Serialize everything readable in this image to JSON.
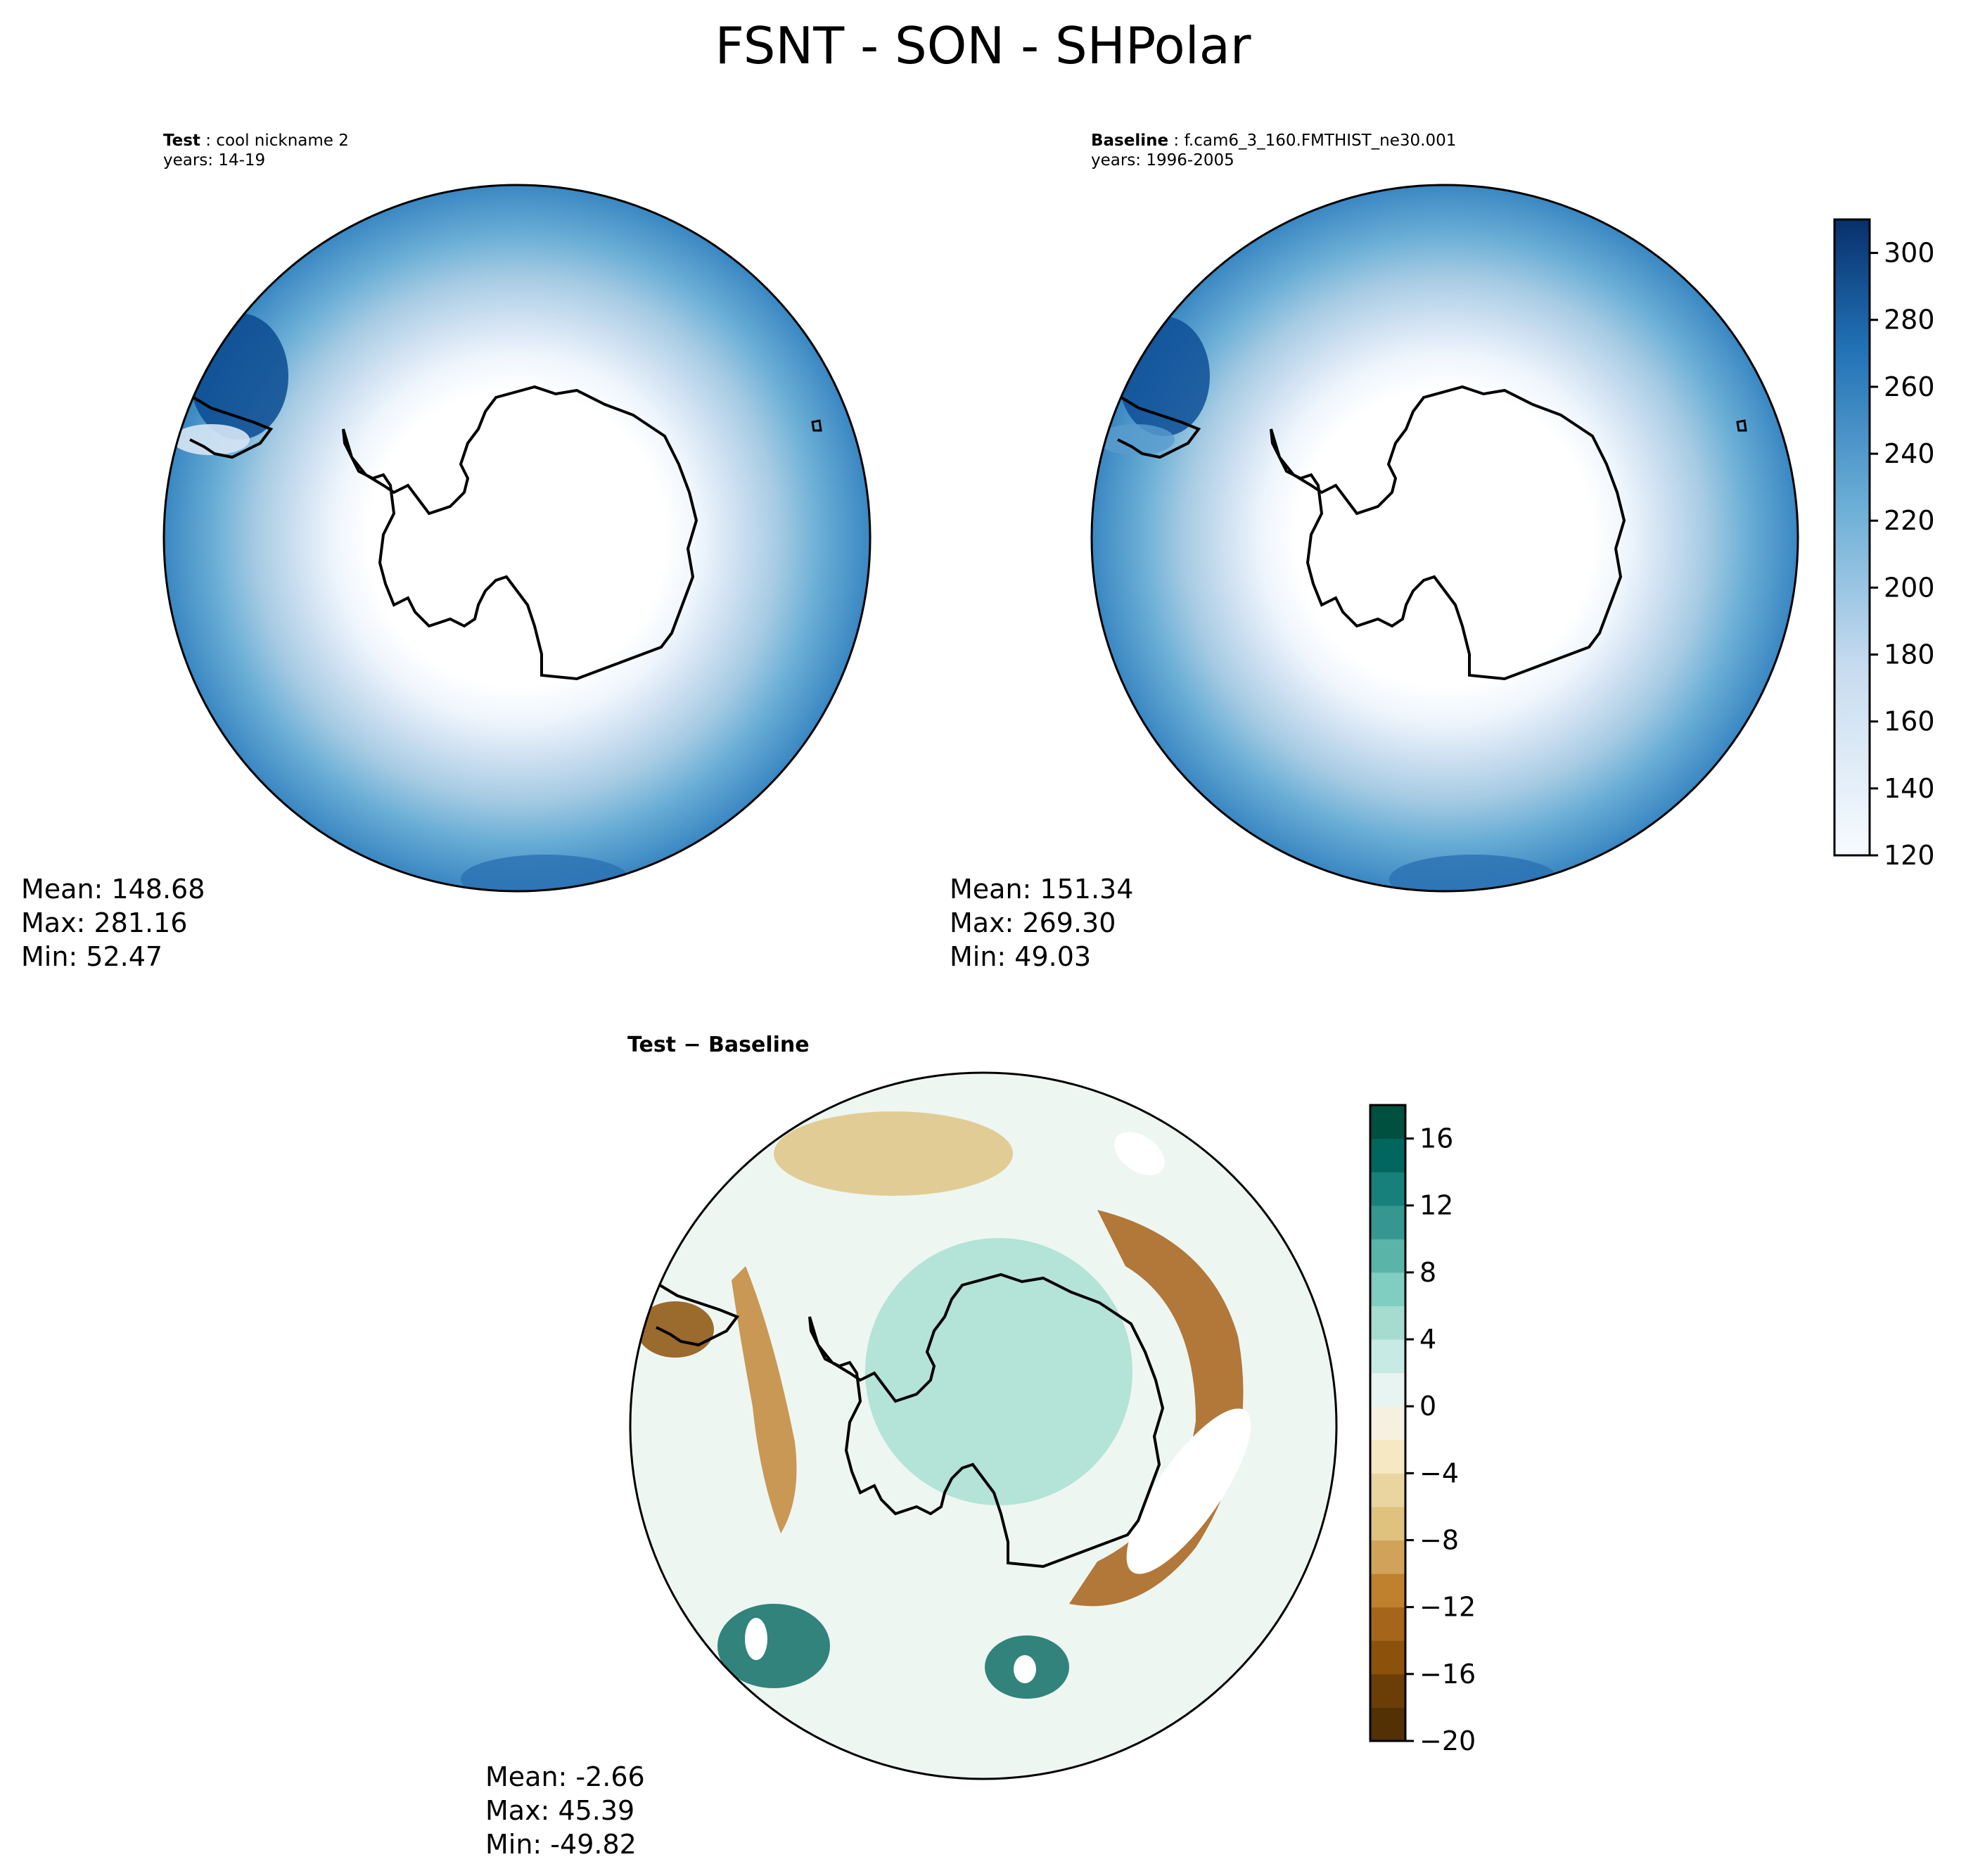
{
  "figure": {
    "title": "FSNT - SON - SHPolar"
  },
  "chart_data": [
    {
      "type": "heatmap",
      "projection": "south-polar-stereographic",
      "panel": "test",
      "title_bold": "Test",
      "title_text": "cool nickname 2",
      "years": "years: 14-19",
      "stats": {
        "mean": "Mean: 148.68",
        "max": "Max: 281.16",
        "min": "Min: 52.47"
      },
      "mean": 148.68,
      "max": 281.16,
      "min": 52.47,
      "colormap": "Blues",
      "vmin": 120,
      "vmax": 310
    },
    {
      "type": "heatmap",
      "projection": "south-polar-stereographic",
      "panel": "baseline",
      "title_bold": "Baseline",
      "title_text": "f.cam6_3_160.FMTHIST_ne30.001",
      "years": "years: 1996-2005",
      "stats": {
        "mean": "Mean: 151.34",
        "max": "Max: 269.30",
        "min": "Min: 49.03"
      },
      "mean": 151.34,
      "max": 269.3,
      "min": 49.03,
      "colormap": "Blues",
      "vmin": 120,
      "vmax": 310,
      "colorbar": {
        "min": 120,
        "max": 310,
        "ticks": [
          120,
          140,
          160,
          180,
          200,
          220,
          240,
          260,
          280,
          300
        ]
      }
    },
    {
      "type": "heatmap",
      "projection": "south-polar-stereographic",
      "panel": "difference",
      "title": "Test − Baseline",
      "stats": {
        "mean": "Mean: -2.66",
        "max": "Max: 45.39",
        "min": "Min: -49.82"
      },
      "mean": -2.66,
      "max": 45.39,
      "min": -49.82,
      "colormap": "BrBG",
      "vmin": -20,
      "vmax": 18,
      "colorbar": {
        "min": -20,
        "max": 18,
        "ticks": [
          -20,
          -16,
          -12,
          -8,
          -4,
          0,
          4,
          8,
          12,
          16
        ],
        "tick_labels": [
          "−20",
          "−16",
          "−12",
          "−8",
          "−4",
          "0",
          "4",
          "8",
          "12",
          "16"
        ]
      }
    }
  ]
}
